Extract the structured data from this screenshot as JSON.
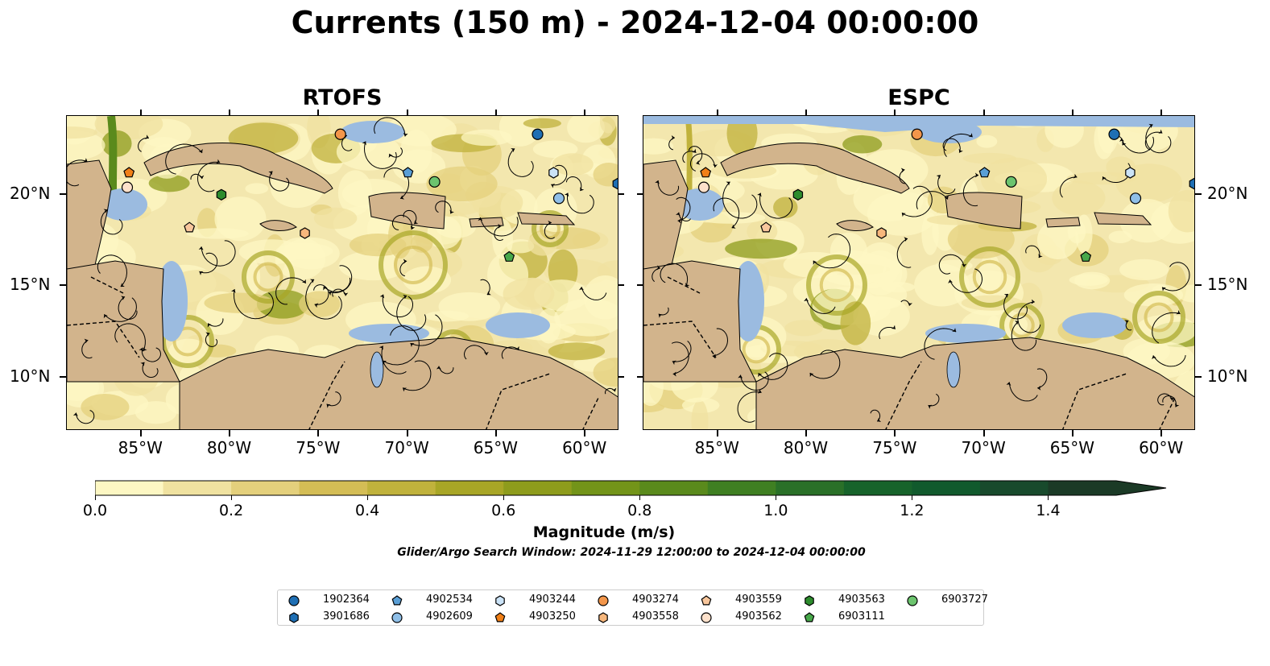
{
  "title": "Currents (150 m) - 2024-12-04 00:00:00",
  "panels": [
    {
      "title": "RTOFS"
    },
    {
      "title": "ESPC"
    }
  ],
  "axes": {
    "x_ticks": [
      "85°W",
      "80°W",
      "75°W",
      "70°W",
      "65°W",
      "60°W"
    ],
    "y_ticks": [
      "20°N",
      "15°N",
      "10°N"
    ]
  },
  "colorbar": {
    "label": "Magnitude (m/s)",
    "ticks": [
      "0.0",
      "0.2",
      "0.4",
      "0.6",
      "0.8",
      "1.0",
      "1.2",
      "1.4"
    ],
    "range": [
      0.0,
      1.5
    ],
    "extend": "max",
    "colors": [
      "#fdf7c3",
      "#f0e2a0",
      "#e4d07c",
      "#d4bd55",
      "#c0b23c",
      "#a8a626",
      "#8e9c1c",
      "#739419",
      "#5a8a1c",
      "#3f7f22",
      "#2a7028",
      "#17632b",
      "#115a2d",
      "#184a2c",
      "#1b3a26"
    ]
  },
  "search_window": "Glider/Argo Search Window: 2024-11-29 12:00:00 to 2024-12-04 00:00:00",
  "colors": {
    "land": "#d2b48c",
    "shallow_water": "#9bbbe0",
    "border": "#000000"
  },
  "legend": [
    {
      "id": "1902364",
      "marker": "circle",
      "color": "#1f6fb4"
    },
    {
      "id": "3901686",
      "marker": "hexagon",
      "color": "#1f6fb4"
    },
    {
      "id": "4902534",
      "marker": "pentagon",
      "color": "#5a9fd6"
    },
    {
      "id": "4902609",
      "marker": "circle",
      "color": "#8fbfe8"
    },
    {
      "id": "4903244",
      "marker": "hexagon",
      "color": "#cbe3f7"
    },
    {
      "id": "4903250",
      "marker": "pentagon",
      "color": "#f07f17"
    },
    {
      "id": "4903274",
      "marker": "circle",
      "color": "#f3964a"
    },
    {
      "id": "4903558",
      "marker": "hexagon",
      "color": "#f7b77c"
    },
    {
      "id": "4903559",
      "marker": "pentagon",
      "color": "#f8c69c"
    },
    {
      "id": "4903562",
      "marker": "circle",
      "color": "#fde1cb"
    },
    {
      "id": "4903563",
      "marker": "hexagon",
      "color": "#2d8c2d"
    },
    {
      "id": "6903111",
      "marker": "pentagon",
      "color": "#47a84a"
    },
    {
      "id": "6903727",
      "marker": "circle",
      "color": "#6cc46e"
    }
  ],
  "markers": [
    {
      "id": "1902364",
      "lon": -62.7,
      "lat": 23.3
    },
    {
      "id": "3901686",
      "lon": -58.2,
      "lat": 20.6
    },
    {
      "id": "4902534",
      "lon": -70.0,
      "lat": 21.2
    },
    {
      "id": "4902609",
      "lon": -61.5,
      "lat": 19.8
    },
    {
      "id": "4903244",
      "lon": -61.8,
      "lat": 21.2
    },
    {
      "id": "4903250",
      "lon": -85.7,
      "lat": 21.2
    },
    {
      "id": "4903274",
      "lon": -73.8,
      "lat": 23.3
    },
    {
      "id": "4903558",
      "lon": -75.8,
      "lat": 17.9
    },
    {
      "id": "4903559",
      "lon": -82.3,
      "lat": 18.2
    },
    {
      "id": "4903562",
      "lon": -85.8,
      "lat": 20.4
    },
    {
      "id": "4903563",
      "lon": -80.5,
      "lat": 20.0
    },
    {
      "id": "6903111",
      "lon": -64.3,
      "lat": 16.6
    },
    {
      "id": "6903727",
      "lon": -68.5,
      "lat": 20.7
    }
  ]
}
